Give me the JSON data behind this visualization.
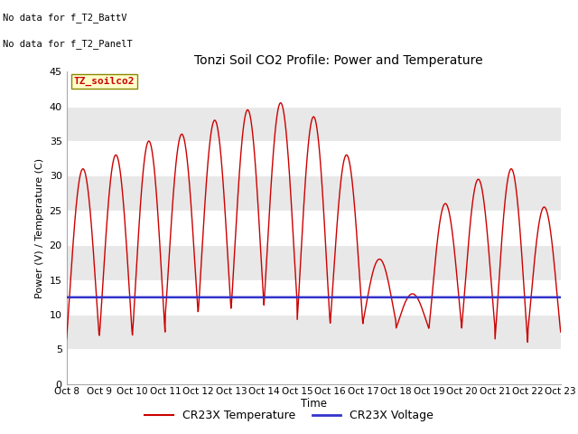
{
  "title": "Tonzi Soil CO2 Profile: Power and Temperature",
  "ylabel": "Power (V) / Temperature (C)",
  "xlabel": "Time",
  "annotations": [
    "No data for f_T2_BattV",
    "No data for f_T2_PanelT"
  ],
  "box_label": "TZ_soilco2",
  "ylim": [
    0,
    45
  ],
  "yticks": [
    0,
    5,
    10,
    15,
    20,
    25,
    30,
    35,
    40,
    45
  ],
  "legend_temp": "CR23X Temperature",
  "legend_volt": "CR23X Voltage",
  "temp_color": "#cc0000",
  "volt_color": "#3333cc",
  "bg_color": "#e8e8e8",
  "white_band": "#f5f5f5",
  "temp_linewidth": 1.0,
  "volt_linewidth": 1.8,
  "xtick_labels": [
    "Oct 8",
    "Oct 9",
    "Oct 10",
    "Oct 11",
    "Oct 12",
    "Oct 13",
    "Oct 14",
    "Oct 15",
    "Oct 16",
    "Oct 17",
    "Oct 18",
    "Oct 19",
    "Oct 20",
    "Oct 21",
    "Oct 22",
    "Oct 23"
  ],
  "voltage_value": 12.5,
  "daily_max": [
    31,
    33,
    35,
    36,
    38,
    39.5,
    40.5,
    38.5,
    33,
    18,
    13,
    26,
    29.5,
    31,
    25.5,
    11
  ],
  "daily_min": [
    6.5,
    7.0,
    7.0,
    10.0,
    10.5,
    11.0,
    12.0,
    9.0,
    8.5,
    9.0,
    8.0,
    8.0,
    8.5,
    6.0,
    7.5,
    9.5
  ]
}
